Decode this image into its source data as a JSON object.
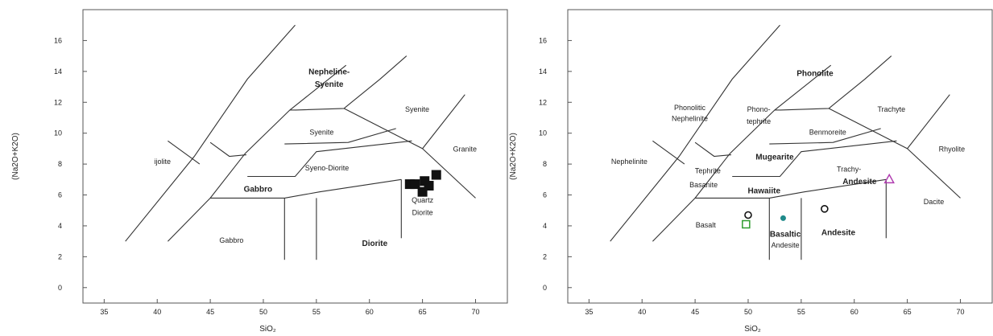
{
  "chart_data": [
    {
      "type": "scatter",
      "variant": "TAS classification (plutonic)",
      "xlabel": "SiO₂",
      "ylabel": "(Na2O+K2O)",
      "xlim": [
        33,
        73
      ],
      "ylim": [
        -1,
        18
      ],
      "x_ticks": [
        35,
        40,
        45,
        50,
        55,
        60,
        65,
        70
      ],
      "y_ticks": [
        0,
        2,
        4,
        6,
        8,
        10,
        12,
        14,
        16
      ],
      "grid": false,
      "fields": [
        {
          "label": "Nepheline-",
          "x": 56.2,
          "y": 13.8,
          "bold": true
        },
        {
          "label": "Syenite",
          "x": 56.2,
          "y": 13.0,
          "bold": true
        },
        {
          "label": "Syenite",
          "x": 64.5,
          "y": 11.4,
          "bold": false
        },
        {
          "label": "Syenite",
          "x": 55.5,
          "y": 9.9,
          "bold": false
        },
        {
          "label": "Granite",
          "x": 69.0,
          "y": 8.8,
          "bold": false
        },
        {
          "label": "ijolite",
          "x": 40.5,
          "y": 8.0,
          "bold": false
        },
        {
          "label": "Syeno-Diorite",
          "x": 56.0,
          "y": 7.6,
          "bold": false
        },
        {
          "label": "Gabbro",
          "x": 49.5,
          "y": 6.2,
          "bold": true
        },
        {
          "label": "Quartz",
          "x": 65.0,
          "y": 5.5,
          "bold": false
        },
        {
          "label": "Diorite",
          "x": 65.0,
          "y": 4.7,
          "bold": false
        },
        {
          "label": "Gabbro",
          "x": 47.0,
          "y": 2.9,
          "bold": false
        },
        {
          "label": "Diorite",
          "x": 60.5,
          "y": 2.7,
          "bold": true
        }
      ],
      "series": [
        {
          "marker": "filled-square",
          "color": "#111111",
          "points": [
            [
              63.8,
              6.7
            ],
            [
              64.3,
              6.7
            ],
            [
              65.2,
              6.9
            ],
            [
              66.3,
              7.3
            ],
            [
              65.0,
              6.2
            ],
            [
              65.6,
              6.6
            ]
          ]
        }
      ]
    },
    {
      "type": "scatter",
      "variant": "TAS classification (volcanic)",
      "xlabel": "SiO₂",
      "ylabel": "(Na2O+K2O)",
      "xlim": [
        33,
        73
      ],
      "ylim": [
        -1,
        18
      ],
      "x_ticks": [
        35,
        40,
        45,
        50,
        55,
        60,
        65,
        70
      ],
      "y_ticks": [
        0,
        2,
        4,
        6,
        8,
        10,
        12,
        14,
        16
      ],
      "grid": false,
      "fields": [
        {
          "label": "Phonolite",
          "x": 56.3,
          "y": 13.7,
          "bold": true
        },
        {
          "label": "Trachyte",
          "x": 63.5,
          "y": 11.4,
          "bold": false
        },
        {
          "label": "Phonolitic",
          "x": 44.5,
          "y": 11.5,
          "bold": false
        },
        {
          "label": "Nephelinite",
          "x": 44.5,
          "y": 10.8,
          "bold": false
        },
        {
          "label": "Phono-",
          "x": 51.0,
          "y": 11.4,
          "bold": false
        },
        {
          "label": "tephrite",
          "x": 51.0,
          "y": 10.6,
          "bold": false
        },
        {
          "label": "Benmoreite",
          "x": 57.5,
          "y": 9.9,
          "bold": false
        },
        {
          "label": "Nephelinite",
          "x": 38.8,
          "y": 8.0,
          "bold": false
        },
        {
          "label": "Mugearite",
          "x": 52.5,
          "y": 8.3,
          "bold": true
        },
        {
          "label": "Rhyolite",
          "x": 69.2,
          "y": 8.8,
          "bold": false
        },
        {
          "label": "Tephrite",
          "x": 46.2,
          "y": 7.4,
          "bold": false
        },
        {
          "label": "Trachy-",
          "x": 59.5,
          "y": 7.5,
          "bold": false
        },
        {
          "label": "Andesite",
          "x": 60.5,
          "y": 6.7,
          "bold": true
        },
        {
          "label": "Basanite",
          "x": 45.8,
          "y": 6.5,
          "bold": false
        },
        {
          "label": "Hawaiite",
          "x": 51.5,
          "y": 6.1,
          "bold": true
        },
        {
          "label": "Dacite",
          "x": 67.5,
          "y": 5.4,
          "bold": false
        },
        {
          "label": "Basalt",
          "x": 46.0,
          "y": 3.9,
          "bold": false
        },
        {
          "label": "Basaltic",
          "x": 53.5,
          "y": 3.3,
          "bold": true
        },
        {
          "label": "Andesite",
          "x": 53.5,
          "y": 2.6,
          "bold": false
        },
        {
          "label": "Andesite",
          "x": 58.5,
          "y": 3.4,
          "bold": true
        }
      ],
      "series": [
        {
          "marker": "open-circle",
          "color": "#111111",
          "points": [
            [
              50.0,
              4.7
            ],
            [
              57.2,
              5.1
            ]
          ]
        },
        {
          "marker": "open-square",
          "color": "#2e9c2e",
          "points": [
            [
              49.8,
              4.1
            ]
          ]
        },
        {
          "marker": "filled-circle",
          "color": "#1f8a8a",
          "points": [
            [
              53.3,
              4.5
            ]
          ]
        },
        {
          "marker": "open-triangle",
          "color": "#b03cb0",
          "points": [
            [
              63.3,
              7.0
            ]
          ]
        }
      ]
    }
  ]
}
